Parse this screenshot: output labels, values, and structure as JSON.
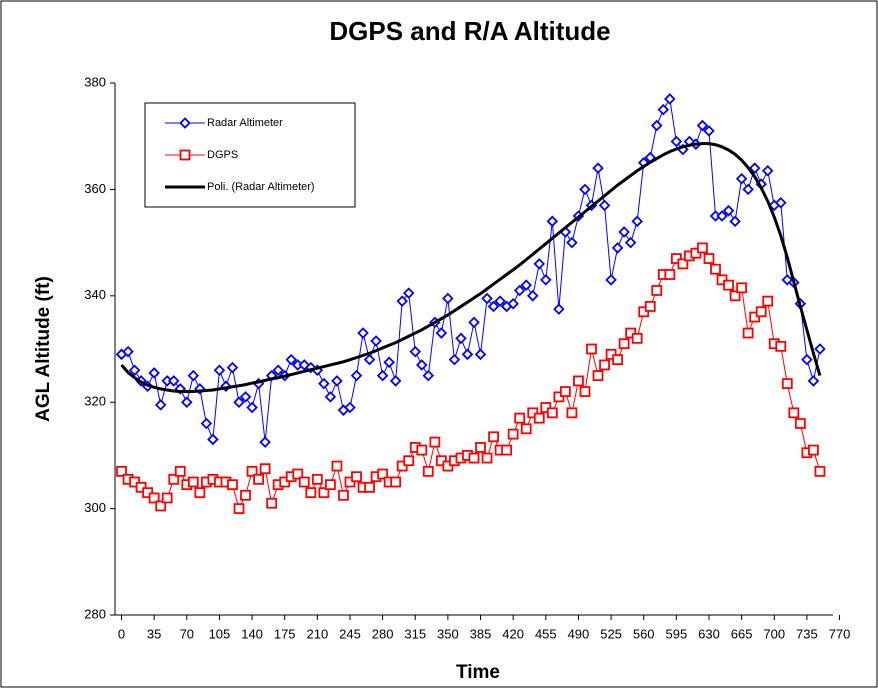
{
  "chart_data": {
    "type": "line",
    "title": "DGPS and R/A Altitude",
    "xlabel": "Time",
    "ylabel": "AGL Altitude (ft)",
    "x": [
      0,
      7,
      14,
      21,
      28,
      35,
      42,
      49,
      56,
      63,
      70,
      77,
      84,
      91,
      98,
      105,
      112,
      119,
      126,
      133,
      140,
      147,
      154,
      161,
      168,
      175,
      182,
      189,
      196,
      203,
      210,
      217,
      224,
      231,
      238,
      245,
      252,
      259,
      266,
      273,
      280,
      287,
      294,
      301,
      308,
      315,
      322,
      329,
      336,
      343,
      350,
      357,
      364,
      371,
      378,
      385,
      392,
      399,
      406,
      413,
      420,
      427,
      434,
      441,
      448,
      455,
      462,
      469,
      476,
      483,
      490,
      497,
      504,
      511,
      518,
      525,
      532,
      539,
      546,
      553,
      560,
      567,
      574,
      581,
      588,
      595,
      602,
      609,
      616,
      623,
      630,
      637,
      644,
      651,
      658,
      665,
      672,
      679,
      686,
      693,
      700,
      707,
      714,
      721,
      728,
      735,
      742,
      749
    ],
    "series": [
      {
        "name": "Radar Altimeter",
        "color": "#0000ff",
        "marker": "diamond",
        "line": 1,
        "values": [
          329,
          329.5,
          326,
          324,
          323,
          325.5,
          319.5,
          324,
          324,
          322.5,
          320,
          325,
          322.5,
          316,
          313,
          326,
          323,
          326.5,
          320,
          321,
          319,
          323.5,
          312.5,
          325,
          326,
          325,
          328,
          327,
          327,
          326.5,
          326,
          323.5,
          321,
          324,
          318.5,
          319,
          325,
          333,
          328,
          331.5,
          325,
          327.5,
          324,
          339,
          340.5,
          329.5,
          327,
          325,
          335,
          333,
          339.5,
          328,
          332,
          329,
          335,
          329,
          339.5,
          338,
          339,
          338,
          338.5,
          341,
          342,
          340,
          346,
          343,
          354,
          337.5,
          352,
          350,
          355,
          360,
          357,
          364,
          357,
          343,
          349,
          352,
          350,
          354,
          365,
          366,
          372,
          375,
          377,
          369,
          367.5,
          369,
          368.5,
          372,
          371,
          355,
          355,
          356,
          354,
          362,
          360,
          364,
          361,
          363.5,
          357,
          357.5,
          343,
          342.5,
          338.5,
          328,
          324,
          330
        ]
      },
      {
        "name": "DGPS",
        "color": "#ff0000",
        "marker": "square",
        "line": 1,
        "values": [
          307,
          305.5,
          305,
          304,
          303,
          302,
          300.5,
          302,
          305.5,
          307,
          304.5,
          305,
          303,
          305,
          305.5,
          305,
          305,
          304.5,
          300,
          302.5,
          307,
          305.5,
          307.5,
          301,
          304.5,
          305,
          306,
          306.5,
          305,
          303,
          305.5,
          303,
          304.5,
          308,
          302.5,
          305,
          306,
          304,
          304,
          306,
          306.5,
          305,
          305,
          308,
          309,
          311.5,
          311,
          307,
          312.5,
          309,
          308,
          309,
          309.5,
          310,
          309.5,
          311.5,
          309.5,
          313.5,
          311,
          311,
          314,
          317,
          315,
          318,
          317,
          319,
          318,
          321,
          322,
          318,
          324,
          322,
          330,
          325,
          327,
          329,
          328,
          331,
          333,
          332,
          337,
          338,
          341,
          344,
          344,
          347,
          346,
          347.5,
          348,
          349,
          347,
          345,
          343,
          342,
          340,
          341.5,
          333,
          336,
          337,
          339,
          331,
          330.5,
          323.5,
          318,
          316,
          310.5,
          311,
          307
        ]
      },
      {
        "name": "Poli. (Radar Altimeter)",
        "color": "#000000",
        "marker": null,
        "line": 3,
        "values": [
          327,
          325.6,
          324.6,
          323.8,
          323.2,
          322.8,
          322.5,
          322.3,
          322.1,
          322.0,
          322.0,
          322.0,
          322.1,
          322.2,
          322.3,
          322.5,
          322.7,
          322.9,
          323.1,
          323.3,
          323.6,
          323.8,
          324.1,
          324.4,
          324.6,
          324.9,
          325.2,
          325.5,
          325.8,
          326.1,
          326.4,
          326.7,
          327.0,
          327.3,
          327.6,
          328.0,
          328.4,
          328.8,
          329.2,
          329.7,
          330.2,
          330.7,
          331.2,
          331.8,
          332.4,
          333.0,
          333.6,
          334.3,
          335.0,
          335.7,
          336.4,
          337.2,
          338.0,
          338.8,
          339.6,
          340.4,
          341.3,
          342.2,
          343.1,
          344.0,
          344.9,
          345.8,
          346.8,
          347.8,
          348.8,
          349.8,
          350.8,
          351.8,
          352.8,
          353.8,
          354.8,
          355.8,
          356.8,
          357.8,
          358.8,
          359.8,
          360.8,
          361.7,
          362.6,
          363.5,
          364.3,
          365.1,
          365.8,
          366.5,
          367.1,
          367.6,
          368.0,
          368.3,
          368.5,
          368.6,
          368.6,
          368.4,
          368.0,
          367.4,
          366.6,
          365.5,
          364.1,
          362.4,
          360.3,
          357.8,
          354.8,
          351.3,
          347.2,
          342.6,
          338.0,
          333.6,
          329.2,
          325.0
        ]
      }
    ],
    "xlim": [
      -7,
      763
    ],
    "xticks": [
      0,
      35,
      70,
      105,
      140,
      175,
      210,
      245,
      280,
      315,
      350,
      385,
      420,
      455,
      490,
      525,
      560,
      595,
      630,
      665,
      700,
      735,
      770
    ],
    "ylim": [
      280,
      380
    ],
    "yticks": [
      280,
      300,
      320,
      340,
      360,
      380
    ],
    "legend": "upper left"
  }
}
